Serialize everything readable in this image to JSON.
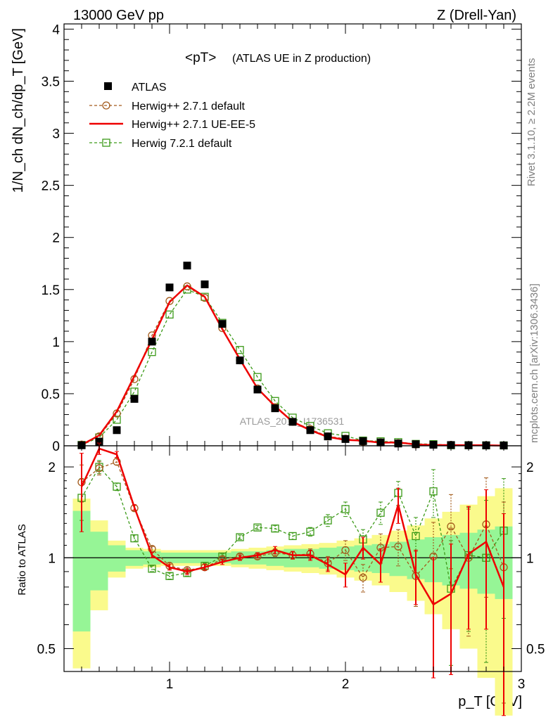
{
  "header": {
    "energy": "13000 GeV pp",
    "process": "Z (Drell-Yan)"
  },
  "side": {
    "rivet": "Rivet 3.1.10, ≥ 2.2M events",
    "mcplots": "mcplots.cern.ch [arXiv:1306.3436]"
  },
  "top": {
    "title_main": "<pT>",
    "title_sub": "(ATLAS UE in Z production)",
    "ylabel": "1/N_ch dN_ch/dp_T [GeV]",
    "watermark": "ATLAS_2019_I1736531",
    "yticks": [
      "0",
      "0.5",
      "1",
      "1.5",
      "2",
      "2.5",
      "3",
      "3.5",
      "4"
    ]
  },
  "bottom": {
    "ylabel": "Ratio to ATLAS",
    "yticks": [
      "0.5",
      "1",
      "2"
    ]
  },
  "xaxis": {
    "label": "p_T [GeV]",
    "ticks": [
      "1",
      "2",
      "3"
    ]
  },
  "legend": [
    {
      "key": "atlas",
      "label": "ATLAS"
    },
    {
      "key": "hw271",
      "label": "Herwig++ 2.7.1 default"
    },
    {
      "key": "ueee5",
      "label": "Herwig++ 2.7.1 UE-EE-5"
    },
    {
      "key": "hw721",
      "label": "Herwig 7.2.1 default"
    }
  ],
  "colors": {
    "atlas": "#000000",
    "hw271": "#a35a1b",
    "ueee5": "#ee0000",
    "hw721": "#3c9a19",
    "band_inner": "#96f596",
    "band_outer": "#fafa8c"
  },
  "chart_data": {
    "type": "line",
    "x": [
      0.5,
      0.6,
      0.7,
      0.8,
      0.9,
      1.0,
      1.1,
      1.2,
      1.3,
      1.4,
      1.5,
      1.6,
      1.7,
      1.8,
      1.9,
      2.0,
      2.1,
      2.2,
      2.3,
      2.4,
      2.5,
      2.6,
      2.7,
      2.8,
      2.9
    ],
    "xlim": [
      0.4,
      3.0
    ],
    "ylim": [
      0,
      4.05
    ],
    "ratio_ylim": [
      0.42,
      2.35
    ],
    "series": [
      {
        "key": "atlas",
        "name": "ATLAS",
        "values": [
          0.005,
          0.04,
          0.15,
          0.45,
          1.0,
          1.52,
          1.73,
          1.55,
          1.17,
          0.82,
          0.54,
          0.36,
          0.23,
          0.15,
          0.09,
          0.065,
          0.045,
          0.032,
          0.022,
          0.015,
          0.01,
          0.007,
          0.005,
          0.004,
          0.003
        ]
      },
      {
        "key": "hw271",
        "name": "Herwig++ 2.7.1 default",
        "values": [
          0.012,
          0.09,
          0.31,
          0.64,
          1.06,
          1.39,
          1.53,
          1.42,
          1.13,
          0.82,
          0.55,
          0.37,
          0.23,
          0.16,
          0.09,
          0.068,
          0.039,
          0.033,
          0.024,
          0.013,
          0.01,
          0.009,
          0.005,
          0.005,
          0.003
        ]
      },
      {
        "key": "ueee5",
        "name": "Herwig++ 2.7.1 UE-EE-5",
        "values": [
          0.009,
          0.1,
          0.33,
          0.67,
          1.02,
          1.38,
          1.54,
          1.43,
          1.12,
          0.83,
          0.55,
          0.38,
          0.23,
          0.15,
          0.085,
          0.057,
          0.049,
          0.03,
          0.033,
          0.013,
          0.007,
          0.007,
          0.005,
          0.0046,
          0.0023
        ]
      },
      {
        "key": "hw721",
        "name": "Herwig 7.2.1 default",
        "values": [
          0.008,
          0.08,
          0.25,
          0.52,
          0.9,
          1.26,
          1.5,
          1.43,
          1.18,
          0.92,
          0.66,
          0.43,
          0.27,
          0.19,
          0.12,
          0.095,
          0.05,
          0.043,
          0.035,
          0.018,
          0.016,
          0.0055,
          0.005,
          0.004,
          0.0036
        ]
      }
    ],
    "ratio": {
      "hw271": {
        "values": [
          1.78,
          1.98,
          2.08,
          1.46,
          1.07,
          0.94,
          0.91,
          0.93,
          0.99,
          1.01,
          1.01,
          1.04,
          1.02,
          1.03,
          0.96,
          1.06,
          0.86,
          1.08,
          1.09,
          0.87,
          1.01,
          1.27,
          1.0,
          1.29,
          0.93
        ],
        "err": [
          0.25,
          0.1,
          0.05,
          0.03,
          0.02,
          0.02,
          0.02,
          0.02,
          0.02,
          0.02,
          0.02,
          0.03,
          0.03,
          0.04,
          0.05,
          0.08,
          0.09,
          0.12,
          0.15,
          0.18,
          0.3,
          0.35,
          0.45,
          0.55,
          0.6
        ]
      },
      "ueee5": {
        "values": [
          1.72,
          2.3,
          2.2,
          1.47,
          1.02,
          0.93,
          0.9,
          0.93,
          0.97,
          1.0,
          1.02,
          1.06,
          1.02,
          1.02,
          0.95,
          0.88,
          1.08,
          0.95,
          1.5,
          0.88,
          0.7,
          0.76,
          1.03,
          1.13,
          0.8
        ],
        "err": [
          0.5,
          0.1,
          0.05,
          0.03,
          0.02,
          0.02,
          0.02,
          0.02,
          0.02,
          0.02,
          0.02,
          0.03,
          0.03,
          0.04,
          0.05,
          0.08,
          0.09,
          0.12,
          0.2,
          0.18,
          0.3,
          0.35,
          0.45,
          0.55,
          0.6
        ]
      },
      "hw721": {
        "values": [
          1.58,
          2.0,
          1.72,
          1.16,
          0.92,
          0.87,
          0.89,
          0.94,
          1.01,
          1.17,
          1.26,
          1.25,
          1.18,
          1.22,
          1.33,
          1.45,
          1.15,
          1.41,
          1.64,
          1.18,
          1.66,
          0.79,
          1.02,
          1.0,
          1.23
        ],
        "err": [
          0.25,
          0.1,
          0.05,
          0.03,
          0.02,
          0.02,
          0.02,
          0.02,
          0.02,
          0.02,
          0.02,
          0.03,
          0.03,
          0.04,
          0.06,
          0.08,
          0.09,
          0.12,
          0.15,
          0.18,
          0.3,
          0.35,
          0.45,
          0.55,
          0.6
        ]
      },
      "band_inner": [
        0.43,
        0.22,
        0.1,
        0.06,
        0.05,
        0.04,
        0.04,
        0.04,
        0.04,
        0.05,
        0.05,
        0.06,
        0.07,
        0.07,
        0.08,
        0.09,
        0.1,
        0.11,
        0.13,
        0.15,
        0.17,
        0.19,
        0.21,
        0.24,
        0.27
      ],
      "band_outer": [
        0.57,
        0.33,
        0.14,
        0.08,
        0.07,
        0.06,
        0.06,
        0.06,
        0.06,
        0.07,
        0.08,
        0.09,
        0.1,
        0.11,
        0.12,
        0.14,
        0.16,
        0.19,
        0.23,
        0.28,
        0.35,
        0.42,
        0.5,
        0.6,
        0.7
      ]
    }
  }
}
